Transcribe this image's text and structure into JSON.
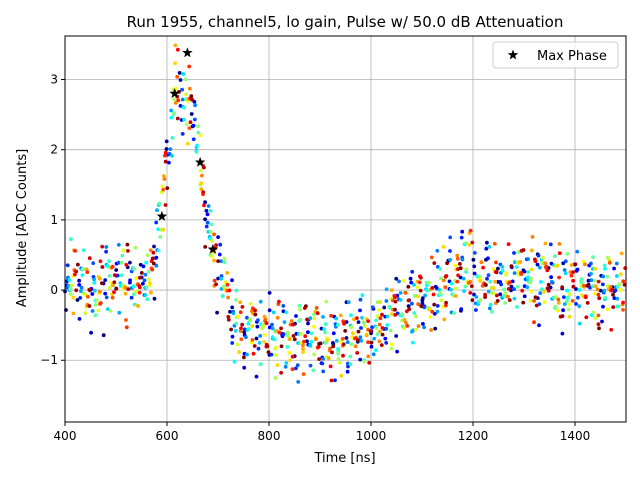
{
  "chart_data": {
    "type": "scatter",
    "title": "Run 1955, channel5, lo gain, Pulse w/ 50.0 dB Attenuation",
    "xlabel": "Time [ns]",
    "ylabel": "Amplitude [ADC Counts]",
    "xlim": [
      400,
      1500
    ],
    "ylim": [
      -1.88,
      3.62
    ],
    "x_ticks": [
      400,
      600,
      800,
      1000,
      1200,
      1400
    ],
    "y_ticks": [
      -1,
      0,
      1,
      2,
      3
    ],
    "grid": true,
    "legend": {
      "position": "top-right",
      "entries": [
        "Max Phase"
      ]
    },
    "colormap": "jet",
    "max_phase": {
      "name": "Max Phase",
      "color": "#000000",
      "x": [
        590,
        615,
        640,
        665,
        690
      ],
      "y": [
        1.05,
        2.8,
        3.38,
        1.82,
        0.58
      ]
    },
    "pulse_profile": {
      "x": [
        400,
        550,
        575,
        590,
        605,
        615,
        625,
        640,
        655,
        665,
        675,
        690,
        705,
        720,
        760,
        800,
        900,
        1000,
        1020,
        1050,
        1100,
        1150,
        1200,
        1300,
        1400,
        1500
      ],
      "y": [
        0.0,
        0.05,
        0.4,
        1.05,
        2.2,
        2.75,
        2.85,
        2.75,
        2.3,
        1.8,
        1.2,
        0.55,
        0.15,
        -0.3,
        -0.55,
        -0.62,
        -0.72,
        -0.68,
        -0.5,
        -0.3,
        -0.15,
        0.1,
        0.2,
        0.15,
        0.0,
        0.0
      ]
    },
    "points_per_phase": 44,
    "phases": 25,
    "noise_sigma": 0.27
  }
}
